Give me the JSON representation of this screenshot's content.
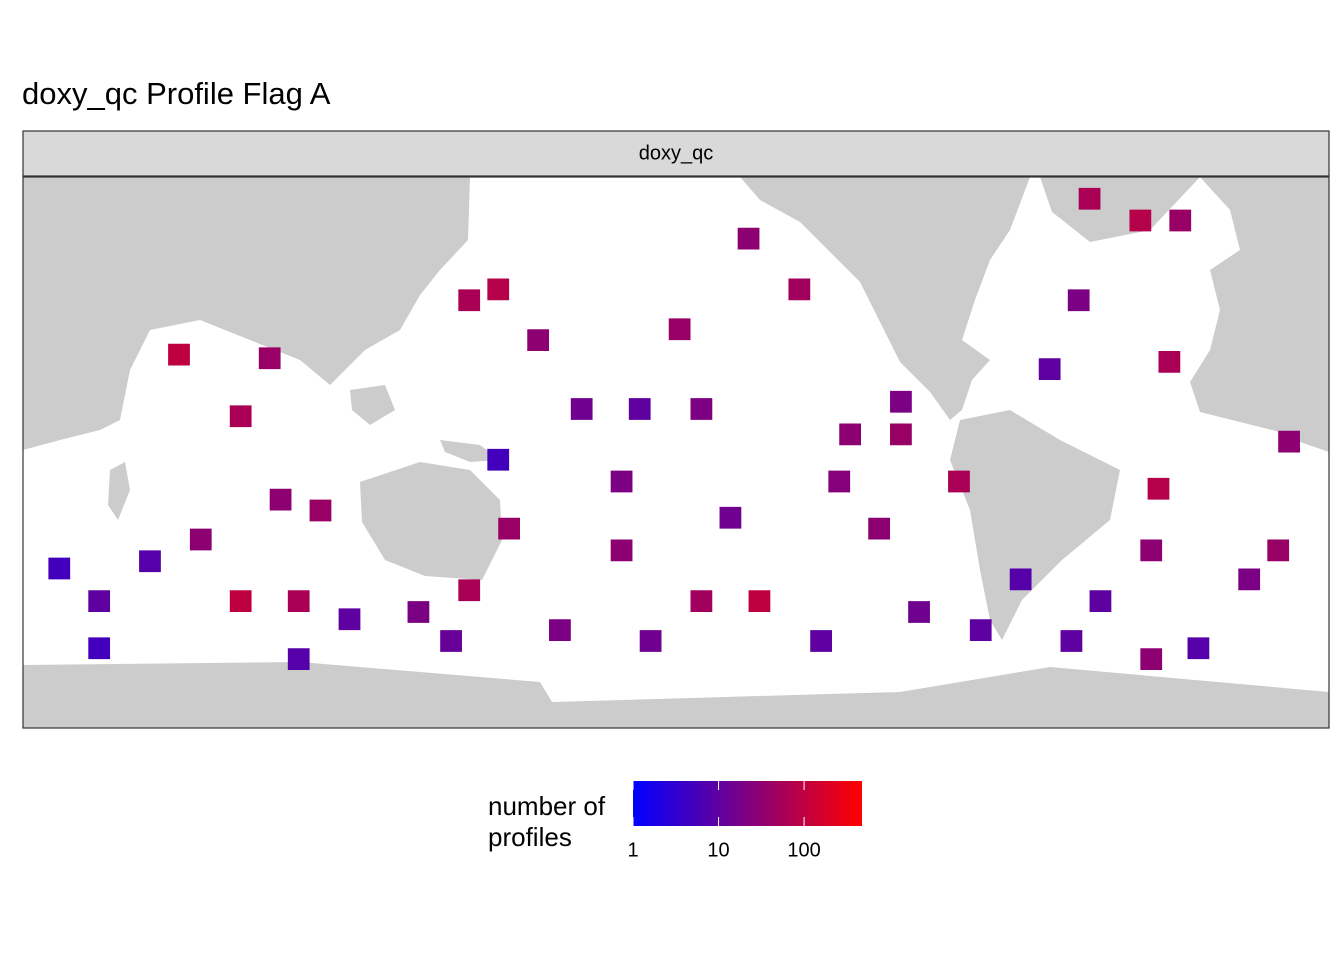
{
  "chart_data": {
    "type": "tile",
    "title": "doxy_qc Profile Flag A",
    "facet_label": "doxy_qc",
    "legend_title": "number of\nprofiles",
    "log_scale": true,
    "scale_colors": [
      "#0000ff",
      "#ff0000"
    ],
    "colorbar_lim": [
      1,
      475
    ],
    "colorbar_ticks": [
      1,
      10,
      100
    ],
    "xlim": [
      20,
      380
    ],
    "ylim": [
      -78,
      74
    ],
    "lon": [
      63,
      80,
      88,
      151,
      143,
      162,
      201,
      220,
      234,
      207,
      248,
      262,
      278,
      314,
      328,
      339,
      311,
      303,
      336,
      333,
      369,
      366,
      331,
      317,
      344,
      358,
      30,
      41,
      55,
      80,
      96,
      91,
      110,
      129,
      143,
      154,
      168,
      185,
      207,
      223,
      240,
      256,
      267,
      284,
      295,
      185,
      151,
      190,
      174,
      262,
      69,
      102,
      245,
      215,
      309,
      331,
      193,
      138,
      41,
      96
    ],
    "lat": [
      25,
      8,
      24,
      43,
      40,
      29,
      32,
      57,
      43,
      10,
      3,
      3,
      -10,
      68,
      62,
      62,
      40,
      21,
      23,
      -12,
      1,
      -29,
      -29,
      -43,
      -56,
      -37,
      -34,
      -43,
      -32,
      -43,
      -43,
      -15,
      -48,
      -46,
      -40,
      -23,
      -51,
      -29,
      -43,
      -43,
      -54,
      -23,
      -46,
      -51,
      -37,
      -10,
      -4,
      10,
      10,
      12,
      -26,
      -18,
      -10,
      -20,
      -54,
      -59,
      -54,
      -54,
      -56,
      -59
    ],
    "values": [
      100,
      60,
      40,
      80,
      60,
      30,
      40,
      30,
      50,
      20,
      30,
      40,
      60,
      60,
      80,
      40,
      20,
      10,
      60,
      80,
      30,
      40,
      30,
      10,
      8,
      20,
      5,
      10,
      8,
      100,
      60,
      30,
      10,
      20,
      60,
      40,
      20,
      30,
      50,
      100,
      10,
      30,
      15,
      10,
      8,
      20,
      5,
      10,
      15,
      20,
      30,
      40,
      25,
      15,
      10,
      30,
      15,
      12,
      5,
      8
    ]
  }
}
